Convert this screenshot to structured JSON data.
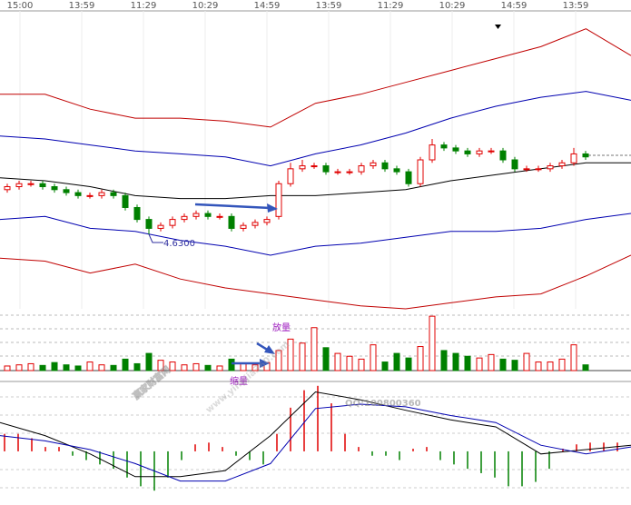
{
  "chart_data": [
    {
      "type": "candlestick",
      "x_labels": [
        "15:00",
        "13:59",
        "11:29",
        "10:29",
        "14:59",
        "13:59",
        "11:29",
        "10:29",
        "14:59",
        "13:59"
      ],
      "open": [
        4.78,
        4.79,
        4.8,
        4.8,
        4.79,
        4.78,
        4.77,
        4.76,
        4.76,
        4.77,
        4.76,
        4.72,
        4.68,
        4.65,
        4.66,
        4.68,
        4.69,
        4.7,
        4.69,
        4.69,
        4.65,
        4.66,
        4.67,
        4.69,
        4.8,
        4.85,
        4.86,
        4.86,
        4.84,
        4.84,
        4.84,
        4.86,
        4.87,
        4.85,
        4.84,
        4.8,
        4.88,
        4.93,
        4.92,
        4.91,
        4.9,
        4.91,
        4.91,
        4.88,
        4.85,
        4.85,
        4.85,
        4.86,
        4.87,
        4.9
      ],
      "high": [
        4.8,
        4.81,
        4.81,
        4.81,
        4.8,
        4.79,
        4.78,
        4.77,
        4.78,
        4.78,
        4.77,
        4.73,
        4.69,
        4.67,
        4.69,
        4.7,
        4.71,
        4.71,
        4.7,
        4.7,
        4.67,
        4.68,
        4.69,
        4.81,
        4.87,
        4.88,
        4.87,
        4.87,
        4.85,
        4.85,
        4.87,
        4.88,
        4.88,
        4.86,
        4.85,
        4.89,
        4.95,
        4.94,
        4.93,
        4.92,
        4.92,
        4.92,
        4.92,
        4.89,
        4.86,
        4.86,
        4.87,
        4.88,
        4.92,
        4.91
      ],
      "low": [
        4.77,
        4.78,
        4.79,
        4.78,
        4.77,
        4.76,
        4.75,
        4.75,
        4.75,
        4.75,
        4.71,
        4.67,
        4.63,
        4.64,
        4.65,
        4.67,
        4.68,
        4.68,
        4.68,
        4.64,
        4.64,
        4.65,
        4.66,
        4.68,
        4.79,
        4.84,
        4.85,
        4.83,
        4.83,
        4.83,
        4.83,
        4.85,
        4.84,
        4.83,
        4.79,
        4.79,
        4.87,
        4.91,
        4.9,
        4.89,
        4.89,
        4.9,
        4.87,
        4.84,
        4.84,
        4.84,
        4.84,
        4.85,
        4.86,
        4.88
      ],
      "close": [
        4.79,
        4.8,
        4.8,
        4.79,
        4.78,
        4.77,
        4.76,
        4.76,
        4.77,
        4.76,
        4.72,
        4.68,
        4.65,
        4.66,
        4.68,
        4.69,
        4.7,
        4.69,
        4.69,
        4.65,
        4.66,
        4.67,
        4.68,
        4.8,
        4.85,
        4.86,
        4.86,
        4.84,
        4.84,
        4.84,
        4.86,
        4.87,
        4.85,
        4.84,
        4.8,
        4.88,
        4.93,
        4.92,
        4.91,
        4.9,
        4.91,
        4.91,
        4.88,
        4.85,
        4.85,
        4.85,
        4.86,
        4.87,
        4.9,
        4.89
      ],
      "up_color": "#e00000",
      "down_color": "#008000",
      "ylim": [
        4.38,
        5.38
      ],
      "low_label": "4.6300",
      "lines": [
        {
          "color": "#c00000",
          "values": [
            5.1,
            5.1,
            5.05,
            5.02,
            5.02,
            5.01,
            4.99,
            5.07,
            5.1,
            5.14,
            5.18,
            5.22,
            5.26,
            5.32,
            5.23
          ]
        },
        {
          "color": "#0000b0",
          "values": [
            4.96,
            4.95,
            4.93,
            4.91,
            4.9,
            4.89,
            4.86,
            4.9,
            4.93,
            4.97,
            5.02,
            5.06,
            5.09,
            5.11,
            5.08
          ]
        },
        {
          "color": "#000000",
          "values": [
            4.82,
            4.81,
            4.79,
            4.76,
            4.75,
            4.75,
            4.76,
            4.76,
            4.77,
            4.78,
            4.81,
            4.83,
            4.85,
            4.87,
            4.87
          ]
        },
        {
          "color": "#0000b0",
          "values": [
            4.68,
            4.69,
            4.65,
            4.64,
            4.61,
            4.59,
            4.56,
            4.59,
            4.6,
            4.62,
            4.64,
            4.64,
            4.65,
            4.68,
            4.7
          ]
        },
        {
          "color": "#c00000",
          "values": [
            4.55,
            4.54,
            4.5,
            4.53,
            4.48,
            4.45,
            4.43,
            4.41,
            4.39,
            4.38,
            4.4,
            4.42,
            4.43,
            4.49,
            4.56
          ]
        }
      ]
    },
    {
      "type": "volume",
      "values": [
        8,
        10,
        12,
        9,
        14,
        10,
        8,
        15,
        10,
        9,
        20,
        12,
        30,
        18,
        15,
        10,
        12,
        9,
        8,
        20,
        12,
        10,
        14,
        35,
        55,
        48,
        75,
        40,
        30,
        25,
        20,
        45,
        15,
        30,
        22,
        42,
        95,
        35,
        30,
        25,
        22,
        28,
        20,
        18,
        30,
        15,
        15,
        20,
        45,
        10
      ],
      "ylim": [
        0,
        100
      ],
      "up_label": "放量",
      "down_label": "缩量",
      "label_color": "#a020c0"
    },
    {
      "type": "macd",
      "histogram": [
        0.02,
        0.02,
        0.015,
        0.005,
        0.005,
        -0.005,
        -0.01,
        -0.015,
        -0.02,
        -0.03,
        -0.04,
        -0.045,
        -0.03,
        -0.01,
        0.008,
        0.01,
        0.005,
        -0.005,
        -0.01,
        -0.015,
        0.02,
        0.05,
        0.07,
        0.075,
        0.055,
        0.02,
        0.005,
        -0.005,
        -0.005,
        -0.01,
        0.003,
        0.005,
        -0.01,
        -0.015,
        -0.02,
        -0.025,
        -0.03,
        -0.04,
        -0.04,
        -0.035,
        -0.02,
        0.003,
        0.008,
        0.01,
        0.01,
        0.01
      ],
      "ylim": [
        -0.05,
        0.08
      ],
      "up_color": "#e00000",
      "down_color": "#008000",
      "lines": [
        {
          "color": "#000000",
          "values": [
            0.033,
            0.018,
            -0.003,
            -0.029,
            -0.029,
            -0.022,
            0.018,
            0.068,
            0.059,
            0.047,
            0.036,
            0.028,
            -0.003,
            0.002,
            0.007
          ]
        },
        {
          "color": "#0000b0",
          "values": [
            0.018,
            0.012,
            0.002,
            -0.014,
            -0.034,
            -0.034,
            -0.014,
            0.049,
            0.054,
            0.051,
            0.041,
            0.033,
            0.007,
            -0.003,
            0.005
          ]
        }
      ]
    }
  ],
  "watermark": {
    "site": "赢家财富网",
    "url": "www.yingjia360.com",
    "qq": "QQ:100800360"
  }
}
